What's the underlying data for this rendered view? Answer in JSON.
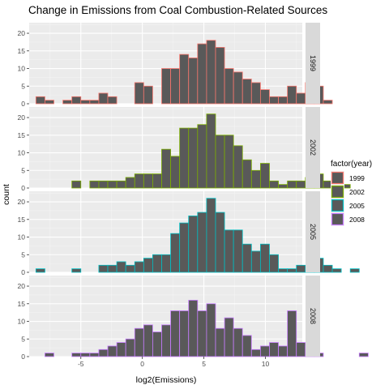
{
  "chart_data": {
    "type": "histogram",
    "title": "Change in Emissions from Coal Combustion-Related Sources",
    "xlabel": "log2(Emissions)",
    "ylabel": "count",
    "xlim": [
      -9.2,
      13.0
    ],
    "xticks": [
      -5,
      0,
      5,
      10
    ],
    "ylim": [
      0,
      23
    ],
    "yticks": [
      0,
      5,
      10,
      15,
      20
    ],
    "bin_width": 0.73,
    "bin_start": -8.65,
    "fill_color": "#595959",
    "legend": {
      "title": "factor(year)",
      "position": "right",
      "entries": [
        {
          "label": "1999",
          "color": "#F8766D"
        },
        {
          "label": "2002",
          "color": "#7CAE00"
        },
        {
          "label": "2005",
          "color": "#00BFC4"
        },
        {
          "label": "2008",
          "color": "#C77CFF"
        }
      ]
    },
    "panels": [
      {
        "year": "1999",
        "color": "#F8766D",
        "counts": [
          2,
          1,
          0,
          1,
          2,
          1,
          1,
          3,
          2,
          0,
          0,
          6,
          5,
          0,
          10,
          10,
          14,
          13,
          17,
          18,
          16,
          10,
          9,
          7,
          6,
          4,
          2,
          2,
          5,
          3,
          6,
          5,
          1,
          0
        ]
      },
      {
        "year": "2002",
        "color": "#7CAE00",
        "counts": [
          0,
          0,
          0,
          0,
          2,
          0,
          2,
          2,
          2,
          2,
          3,
          4,
          4,
          4,
          11,
          9,
          17,
          17,
          18,
          21,
          15,
          15,
          12,
          8,
          5,
          7,
          2,
          1,
          2,
          2,
          3,
          4,
          2,
          0,
          1
        ]
      },
      {
        "year": "2005",
        "color": "#00BFC4",
        "counts": [
          1,
          0,
          0,
          0,
          1,
          0,
          0,
          2,
          2,
          3,
          2,
          3,
          4,
          5,
          5,
          11,
          14,
          16,
          17,
          21,
          17,
          12,
          12,
          8,
          6,
          8,
          5,
          1,
          1,
          2,
          1,
          4,
          2,
          1,
          0,
          1
        ]
      },
      {
        "year": "2008",
        "color": "#C77CFF",
        "counts": [
          0,
          1,
          0,
          0,
          1,
          1,
          1,
          2,
          3,
          4,
          5,
          8,
          9,
          7,
          9,
          13,
          13,
          16,
          13,
          15,
          8,
          11,
          8,
          6,
          2,
          3,
          4,
          3,
          13,
          4,
          3,
          1,
          0,
          0,
          0,
          0,
          1
        ]
      }
    ]
  }
}
